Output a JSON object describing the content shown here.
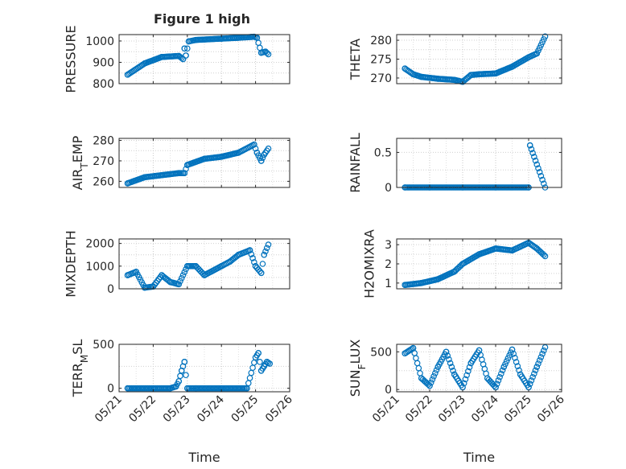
{
  "figure": {
    "title": "Figure 1 high",
    "marker_color": "#0072BD",
    "grid": "dotted",
    "xlim": [
      "05/21",
      "05/26"
    ]
  },
  "chart_data": [
    {
      "type": "scatter",
      "title": "Figure 1 high",
      "ylabel": "PRESSURE",
      "xlabel": "",
      "xlim": [
        "05/21",
        "05/26"
      ],
      "xticks": [
        "05/21",
        "05/22",
        "05/23",
        "05/24",
        "05/25",
        "05/26"
      ],
      "show_xticklabels": false,
      "ylim": [
        800,
        1030
      ],
      "yticks": [
        800,
        900,
        1000
      ],
      "series": [
        {
          "x": [
            "05/21 06:00",
            "05/21 18:00",
            "05/22 06:00",
            "05/22 18:00",
            "05/22 21:00",
            "05/22 22:00",
            "05/22 23:00",
            "05/23 01:00",
            "05/23 06:00",
            "05/24 00:00",
            "05/24 12:00",
            "05/24 21:00",
            "05/24 23:00",
            "05/25 01:00",
            "05/25 04:00",
            "05/25 07:00",
            "05/25 09:00"
          ],
          "y": [
            842,
            895,
            925,
            930,
            915,
            965,
            932,
            998,
            1005,
            1011,
            1015,
            1019,
            1020,
            1015,
            945,
            950,
            938
          ]
        }
      ]
    },
    {
      "type": "scatter",
      "title": "",
      "ylabel": "THETA",
      "xlabel": "",
      "xlim": [
        "05/21",
        "05/26"
      ],
      "xticks": [
        "05/21",
        "05/22",
        "05/23",
        "05/24",
        "05/25",
        "05/26"
      ],
      "show_xticklabels": false,
      "ylim": [
        268.5,
        281.5
      ],
      "yticks": [
        270,
        275,
        280
      ],
      "series": [
        {
          "x": [
            "05/21 06:00",
            "05/21 12:00",
            "05/21 18:00",
            "05/22 06:00",
            "05/22 18:00",
            "05/23 00:00",
            "05/23 06:00",
            "05/23 12:00",
            "05/24 00:00",
            "05/24 12:00",
            "05/25 00:00",
            "05/25 06:00",
            "05/25 12:00"
          ],
          "y": [
            272.5,
            271.0,
            270.3,
            269.8,
            269.5,
            269.0,
            270.8,
            271.0,
            271.2,
            273.0,
            275.5,
            276.5,
            281.0
          ]
        }
      ]
    },
    {
      "type": "scatter",
      "title": "",
      "ylabel": "AIR_TEMP",
      "xlabel": "",
      "xlim": [
        "05/21",
        "05/26"
      ],
      "xticks": [
        "05/21",
        "05/22",
        "05/23",
        "05/24",
        "05/25",
        "05/26"
      ],
      "show_xticklabels": false,
      "ylim": [
        257,
        281
      ],
      "yticks": [
        260,
        270,
        280
      ],
      "series": [
        {
          "x": [
            "05/21 06:00",
            "05/21 18:00",
            "05/22 06:00",
            "05/22 18:00",
            "05/22 22:00",
            "05/23 00:00",
            "05/23 12:00",
            "05/24 00:00",
            "05/24 12:00",
            "05/24 23:00",
            "05/25 01:00",
            "05/25 04:00",
            "05/25 06:00",
            "05/25 09:00"
          ],
          "y": [
            259,
            262,
            263,
            264,
            264,
            268,
            271,
            272,
            274,
            278,
            274,
            270,
            273,
            276
          ]
        }
      ]
    },
    {
      "type": "scatter",
      "title": "",
      "ylabel": "RAINFALL",
      "xlabel": "",
      "xlim": [
        "05/21",
        "05/26"
      ],
      "xticks": [
        "05/21",
        "05/22",
        "05/23",
        "05/24",
        "05/25",
        "05/26"
      ],
      "show_xticklabels": false,
      "ylim": [
        0,
        0.7
      ],
      "yticks": [
        0,
        0.5
      ],
      "series": [
        {
          "x": [
            "05/21 06:00",
            "05/22 00:00",
            "05/23 00:00",
            "05/24 00:00",
            "05/25 00:00",
            "05/25 01:00",
            "05/25 12:00"
          ],
          "y": [
            0,
            0,
            0,
            0,
            0,
            0.6,
            0
          ]
        }
      ]
    },
    {
      "type": "scatter",
      "title": "",
      "ylabel": "MIXDEPTH",
      "xlabel": "",
      "xlim": [
        "05/21",
        "05/26"
      ],
      "xticks": [
        "05/21",
        "05/22",
        "05/23",
        "05/24",
        "05/25",
        "05/26"
      ],
      "show_xticklabels": false,
      "ylim": [
        0,
        2200
      ],
      "yticks": [
        0,
        1000,
        2000
      ],
      "series": [
        {
          "x": [
            "05/21 06:00",
            "05/21 12:00",
            "05/21 18:00",
            "05/22 00:00",
            "05/22 06:00",
            "05/22 12:00",
            "05/22 18:00",
            "05/23 00:00",
            "05/23 06:00",
            "05/23 12:00",
            "05/24 00:00",
            "05/24 06:00",
            "05/24 12:00",
            "05/24 20:00",
            "05/25 00:00",
            "05/25 04:00",
            "05/25 06:00",
            "05/25 09:00"
          ],
          "y": [
            600,
            750,
            50,
            100,
            600,
            300,
            200,
            1000,
            1000,
            600,
            1000,
            1200,
            1500,
            1700,
            1000,
            700,
            1500,
            1950
          ]
        }
      ]
    },
    {
      "type": "scatter",
      "title": "",
      "ylabel": "H2OMIXRA",
      "xlabel": "",
      "xlim": [
        "05/21",
        "05/26"
      ],
      "xticks": [
        "05/21",
        "05/22",
        "05/23",
        "05/24",
        "05/25",
        "05/26"
      ],
      "show_xticklabels": false,
      "ylim": [
        0.7,
        3.3
      ],
      "yticks": [
        1,
        2,
        3
      ],
      "series": [
        {
          "x": [
            "05/21 06:00",
            "05/21 18:00",
            "05/22 06:00",
            "05/22 18:00",
            "05/23 00:00",
            "05/23 12:00",
            "05/24 00:00",
            "05/24 12:00",
            "05/24 18:00",
            "05/25 00:00",
            "05/25 06:00",
            "05/25 12:00"
          ],
          "y": [
            0.9,
            1.0,
            1.2,
            1.6,
            2.0,
            2.5,
            2.8,
            2.7,
            2.9,
            3.1,
            2.8,
            2.4
          ]
        }
      ]
    },
    {
      "type": "scatter",
      "title": "",
      "ylabel": "TERR_MSL",
      "xlabel": "Time",
      "xlim": [
        "05/21",
        "05/26"
      ],
      "xticks": [
        "05/21",
        "05/22",
        "05/23",
        "05/24",
        "05/25",
        "05/26"
      ],
      "show_xticklabels": true,
      "ylim": [
        -40,
        500
      ],
      "yticks": [
        0,
        500
      ],
      "series": [
        {
          "x": [
            "05/21 06:00",
            "05/22 00:00",
            "05/22 12:00",
            "05/22 16:00",
            "05/22 18:00",
            "05/22 20:00",
            "05/22 22:00",
            "05/23 00:00",
            "05/23 06:00",
            "05/24 00:00",
            "05/24 18:00",
            "05/25 00:00",
            "05/25 02:00",
            "05/25 04:00",
            "05/25 06:00",
            "05/25 08:00",
            "05/25 10:00"
          ],
          "y": [
            0,
            0,
            0,
            20,
            80,
            200,
            300,
            0,
            0,
            0,
            0,
            350,
            400,
            200,
            250,
            300,
            280
          ]
        }
      ]
    },
    {
      "type": "scatter",
      "title": "",
      "ylabel": "SUN_FLUX",
      "xlabel": "Time",
      "xlim": [
        "05/21",
        "05/26"
      ],
      "xticks": [
        "05/21",
        "05/22",
        "05/23",
        "05/24",
        "05/25",
        "05/26"
      ],
      "show_xticklabels": true,
      "ylim": [
        -30,
        600
      ],
      "yticks": [
        0,
        500
      ],
      "series": [
        {
          "x": [
            "05/21 06:00",
            "05/21 12:00",
            "05/21 18:00",
            "05/22 00:00",
            "05/22 06:00",
            "05/22 12:00",
            "05/22 18:00",
            "05/23 00:00",
            "05/23 06:00",
            "05/23 12:00",
            "05/23 18:00",
            "05/24 00:00",
            "05/24 06:00",
            "05/24 12:00",
            "05/24 18:00",
            "05/25 00:00",
            "05/25 06:00",
            "05/25 12:00"
          ],
          "y": [
            480,
            550,
            150,
            50,
            300,
            500,
            200,
            30,
            350,
            520,
            150,
            30,
            300,
            530,
            200,
            30,
            300,
            560
          ]
        }
      ]
    }
  ]
}
